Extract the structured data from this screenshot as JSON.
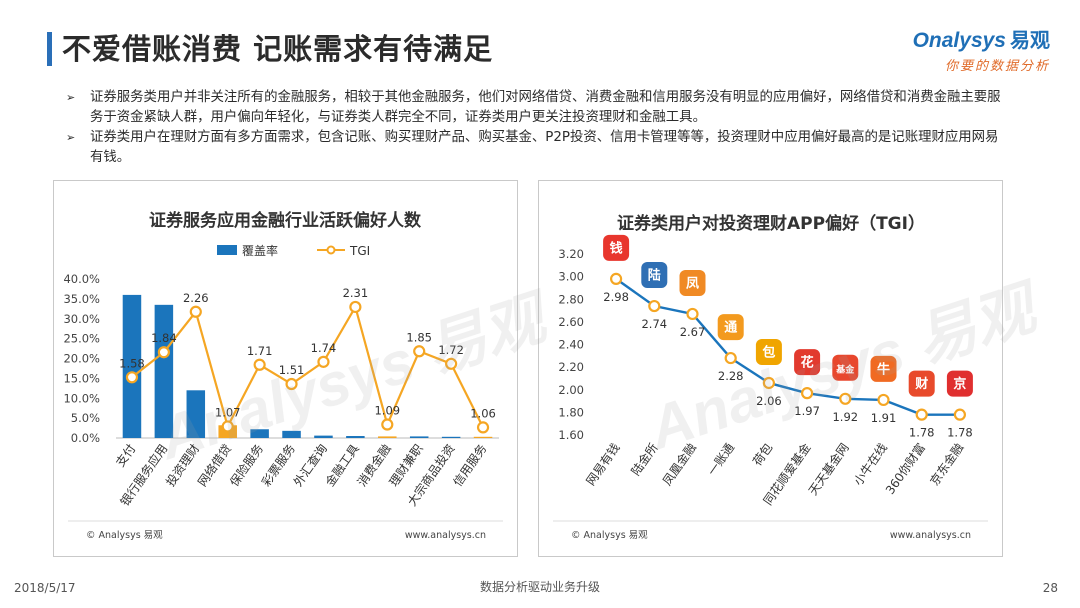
{
  "header": {
    "title": "不爱借账消费   记账需求有待满足",
    "logo_en": "Onalysys",
    "logo_cn": "易观",
    "logo_slogan": "你要的数据分析"
  },
  "bullets": [
    "证券服务类用户并非关注所有的金融服务，相较于其他金融服务，他们对网络借贷、消费金融和信用服务没有明显的应用偏好，网络借贷和消费金融主要服务于资金紧缺人群，用户偏向年轻化，与证券类人群完全不同，证券类用户更关注投资理财和金融工具。",
    "证券类用户在理财方面有多方面需求，包含记账、购买理财产品、购买基金、P2P投资、信用卡管理等等，投资理财中应用偏好最高的是记账理财应用网易有钱。"
  ],
  "watermark": {
    "en": "Analysys 易观",
    "cn": "你要的数据分析"
  },
  "chart_data": [
    {
      "type": "bar",
      "title": "证券服务应用金融行业活跃偏好人数",
      "categories": [
        "支付",
        "银行服务应用",
        "投资理财",
        "网络借贷",
        "保险服务",
        "彩票服务",
        "外汇查询",
        "金融工具",
        "消费金融",
        "理财兼职",
        "大宗商品投资",
        "信用服务"
      ],
      "series": [
        {
          "name": "覆盖率",
          "kind": "bar",
          "axis": "left",
          "values": [
            36.0,
            33.5,
            12.0,
            3.2,
            2.2,
            1.8,
            0.6,
            0.5,
            0.4,
            0.4,
            0.3,
            0.3
          ],
          "colors": [
            "#1b75bc",
            "#1b75bc",
            "#1b75bc",
            "#f5a623",
            "#1b75bc",
            "#1b75bc",
            "#1b75bc",
            "#1b75bc",
            "#f5a623",
            "#1b75bc",
            "#1b75bc",
            "#f5a623"
          ]
        },
        {
          "name": "TGI",
          "kind": "line",
          "axis": "right",
          "values": [
            1.58,
            1.84,
            2.26,
            1.07,
            1.71,
            1.51,
            1.74,
            2.31,
            1.09,
            1.85,
            1.72,
            1.06
          ],
          "labels": [
            "1.58",
            "1.84",
            "2.26",
            "1.07",
            "1.71",
            "1.51",
            "1.74",
            "2.31",
            "1.09",
            "1.85",
            "1.72",
            "1.06"
          ]
        }
      ],
      "y_ticks": [
        "40.0%",
        "35.0%",
        "30.0%",
        "25.0%",
        "20.0%",
        "15.0%",
        "10.0%",
        "5.0%",
        "0.0%"
      ],
      "ylim": [
        0,
        40
      ],
      "y2lim": [
        0.95,
        2.6
      ],
      "legend": "top-center",
      "footer_left": "© Analysys 易观",
      "footer_right": "www.analysys.cn"
    },
    {
      "type": "line",
      "title": "证券类用户对投资理财APP偏好（TGI）",
      "categories": [
        "网易有钱",
        "陆金所",
        "凤凰金融",
        "一账通",
        "荷包",
        "同花顺爱基金",
        "天天基金网",
        "小牛在线",
        "360你财富",
        "京东金融"
      ],
      "values": [
        2.98,
        2.74,
        2.67,
        2.28,
        2.06,
        1.97,
        1.92,
        1.91,
        1.78,
        1.78
      ],
      "labels": [
        "2.98",
        "2.74",
        "2.67",
        "2.28",
        "2.06",
        "1.97",
        "1.92",
        "1.91",
        "1.78",
        "1.78"
      ],
      "app_icons": [
        "钱",
        "陆",
        "凤",
        "通",
        "包",
        "花",
        "基金",
        "牛",
        "财",
        "京"
      ],
      "icon_colors": [
        "#e8362d",
        "#2f6fb4",
        "#f08a24",
        "#f39a1e",
        "#f0a500",
        "#e23a2e",
        "#e8472d",
        "#f06a22",
        "#e84a2b",
        "#e02f2f"
      ],
      "y_ticks": [
        "3.20",
        "3.00",
        "2.80",
        "2.60",
        "2.40",
        "2.20",
        "2.00",
        "1.80",
        "1.60"
      ],
      "ylim": [
        1.6,
        3.2
      ],
      "footer_left": "© Analysys 易观",
      "footer_right": "www.analysys.cn"
    }
  ],
  "footer": {
    "date": "2018/5/17",
    "center": "数据分析驱动业务升级",
    "page": "28"
  }
}
